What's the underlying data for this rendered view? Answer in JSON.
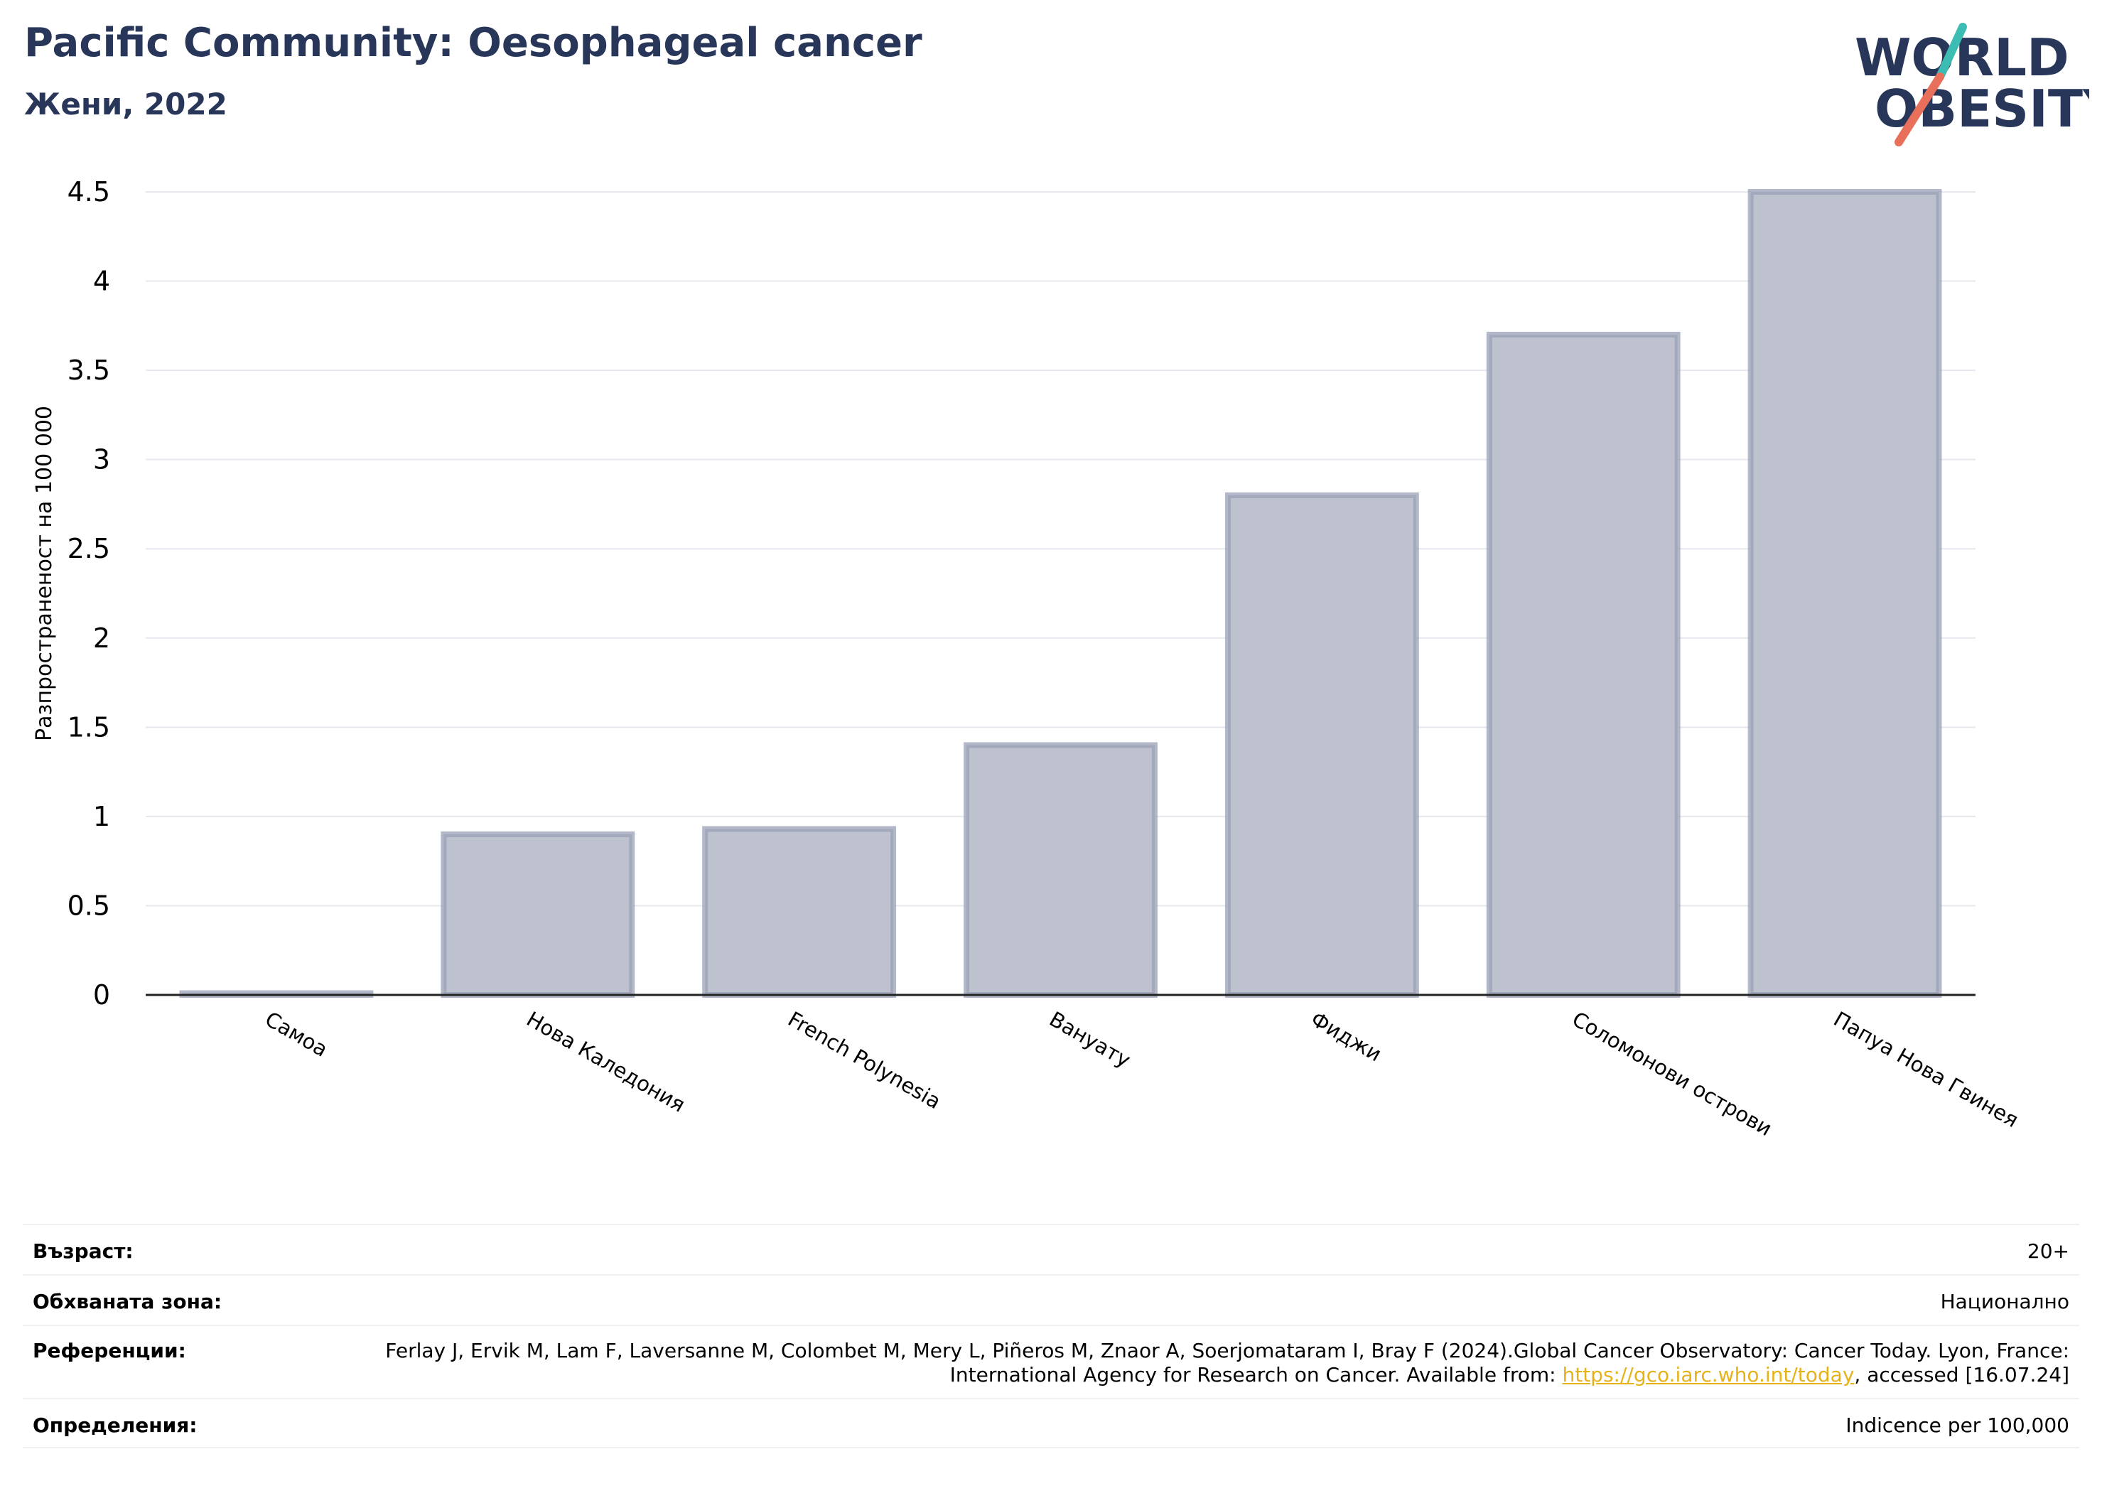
{
  "header": {
    "title": "Pacific Community: Oesophageal cancer",
    "subtitle": "Жени, 2022"
  },
  "logo": {
    "line1": "WORLD",
    "line2": "OBESITY",
    "text_color": "#283759",
    "slash_colors": [
      "#3dbcb4",
      "#e8705a"
    ]
  },
  "chart_data": {
    "type": "bar",
    "categories": [
      "Самоа",
      "Нова Каледония",
      "French Polynesia",
      "Вануату",
      "Фиджи",
      "Соломонови острови",
      "Папуа Нова Гвинея"
    ],
    "values": [
      0.01,
      0.9,
      0.93,
      1.4,
      2.8,
      3.7,
      4.5
    ],
    "ylabel": "Разпространеност  на 100 000",
    "xlabel": "",
    "ylim": [
      0,
      4.5
    ],
    "yticks": [
      "0",
      "0.5",
      "1",
      "1.5",
      "2",
      "2.5",
      "3",
      "3.5",
      "4",
      "4.5"
    ],
    "grid": true,
    "bar_fill": "#bec2ce",
    "bar_stroke": "#9aa0b6"
  },
  "meta": {
    "age_label": "Възраст:",
    "age_value": "20+",
    "area_label": "Обхваната зона:",
    "area_value": "Национално",
    "refs_label": "Референции:",
    "refs_text_before": "Ferlay J, Ervik M, Lam F, Laversanne M, Colombet M, Mery L, Piñeros M, Znaor A, Soerjomataram I, Bray F (2024).Global Cancer Observatory: Cancer Today. Lyon, France: International Agency for Research on Cancer. Available from: ",
    "refs_link": "https://gco.iarc.who.int/today",
    "refs_text_after": ", accessed [16.07.24]",
    "defs_label": "Определения:",
    "defs_value": "Indicence per 100,000"
  }
}
